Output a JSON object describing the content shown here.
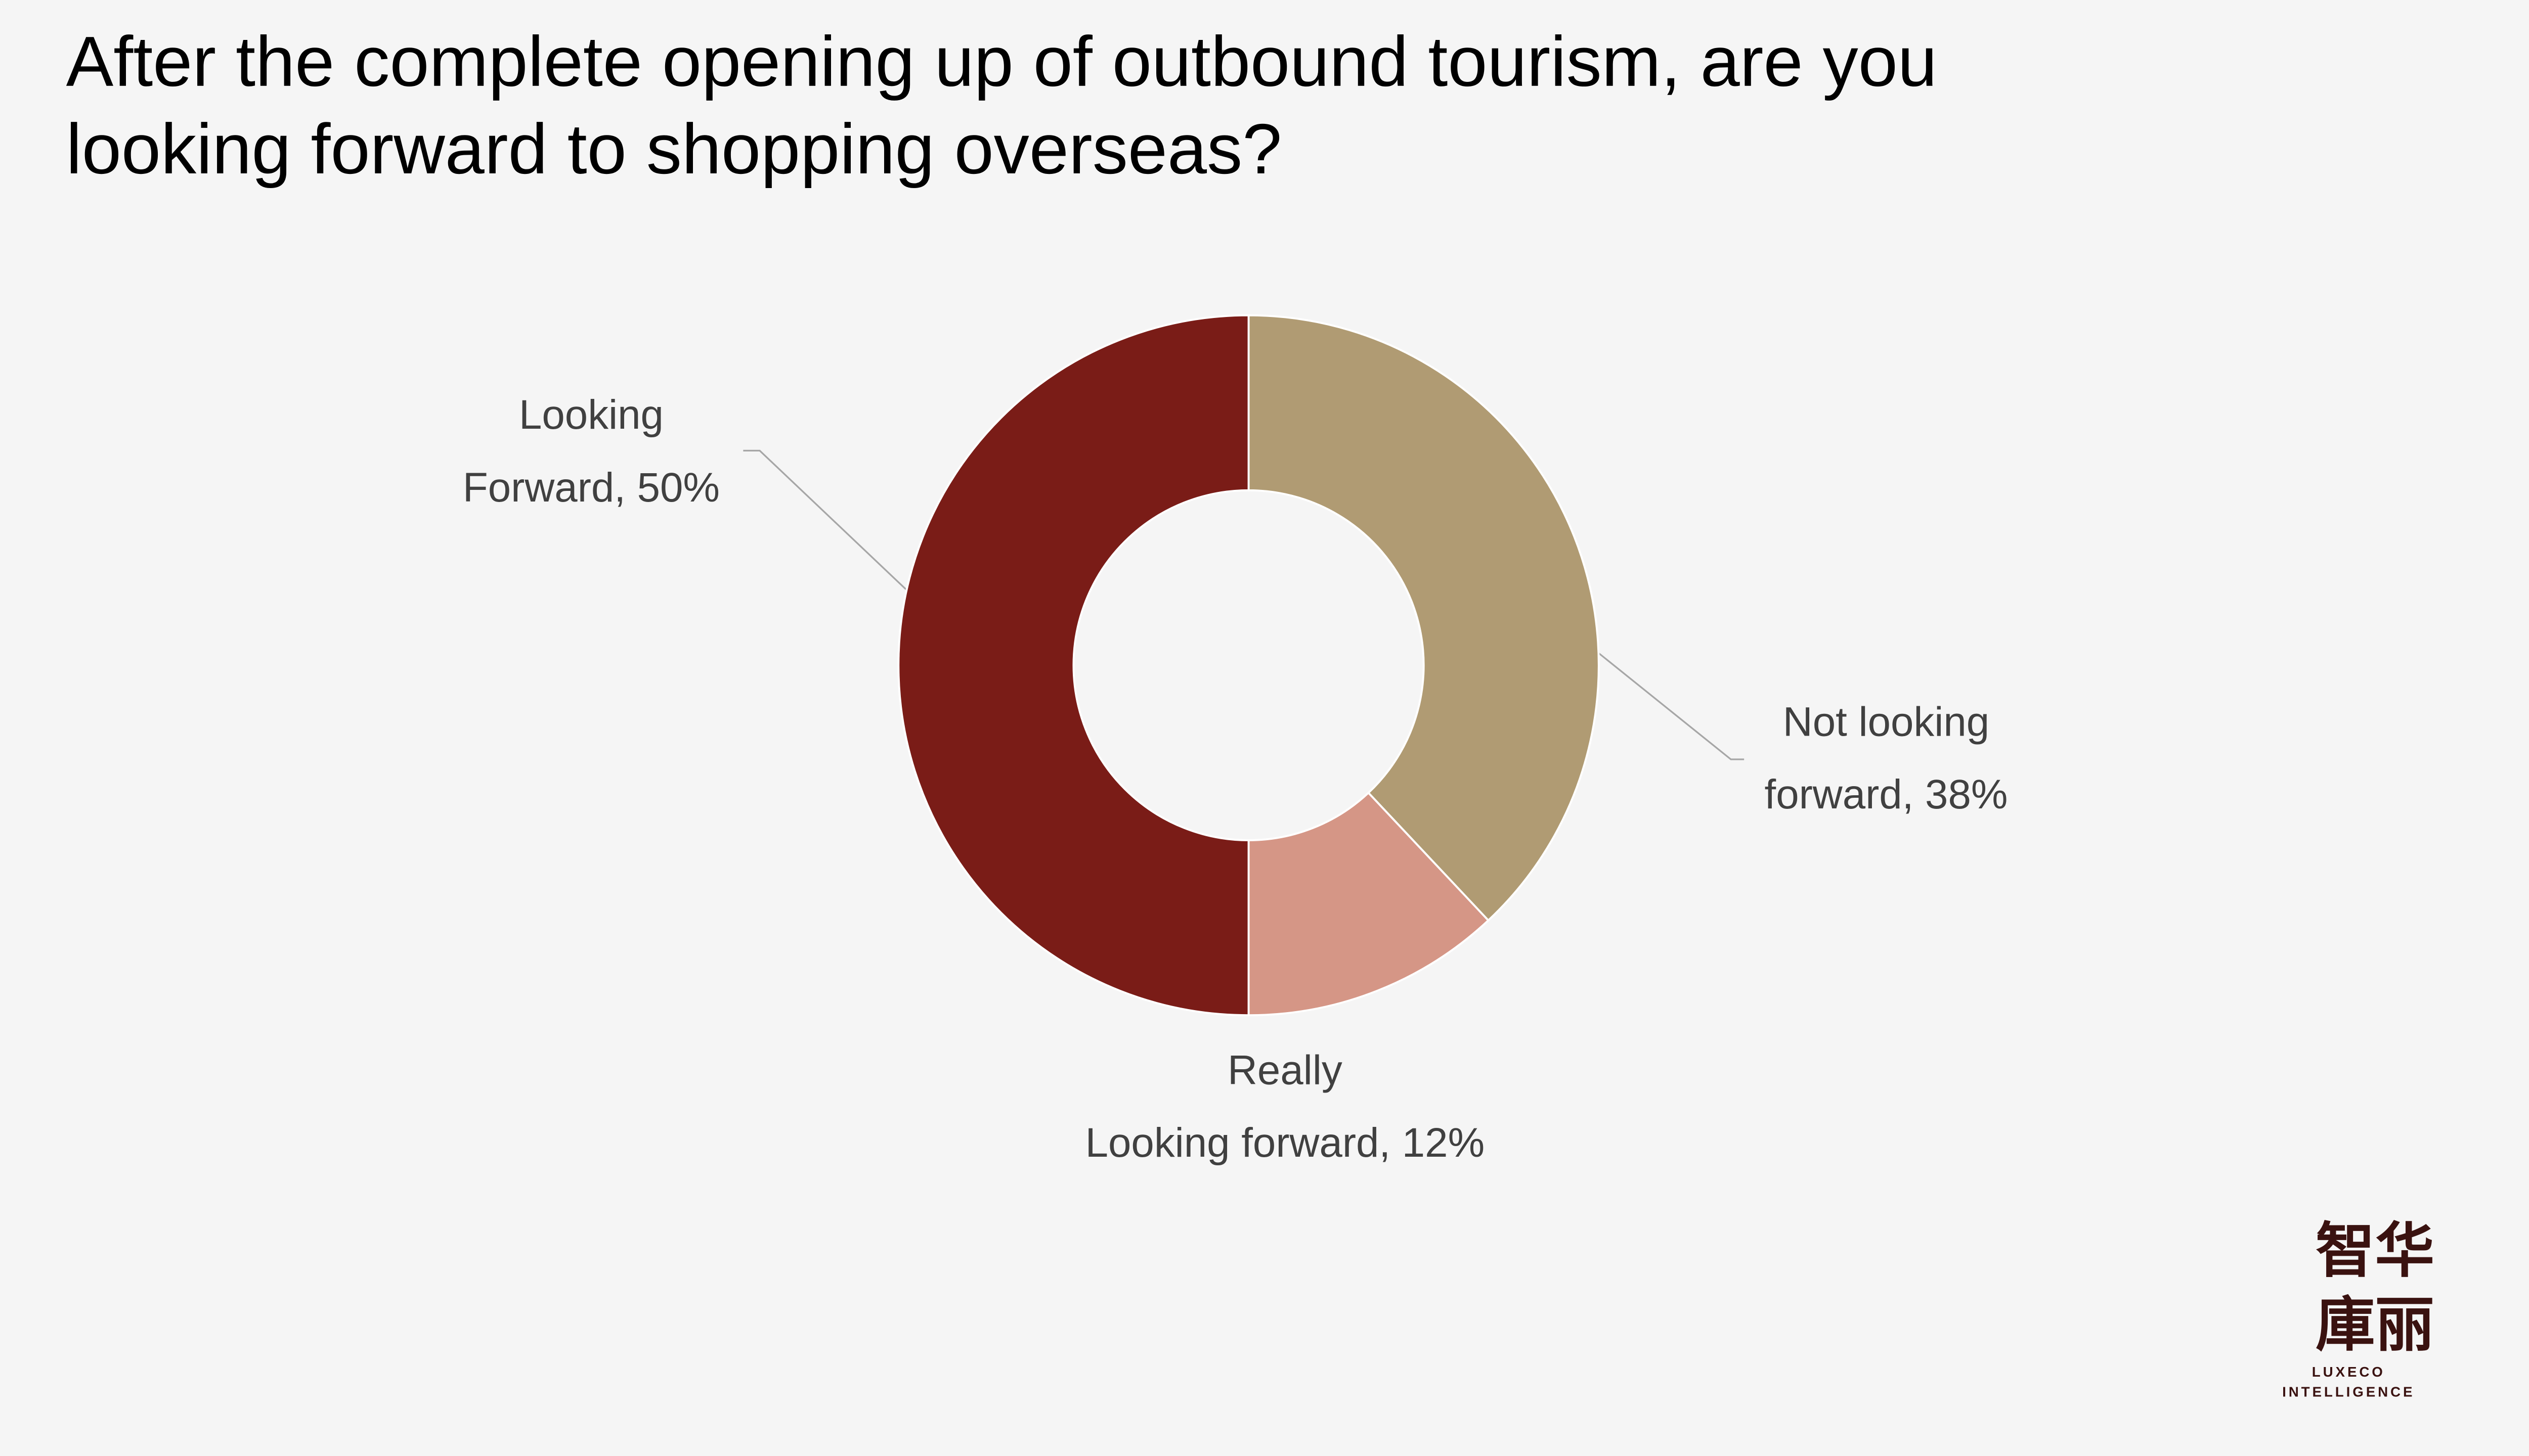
{
  "chart_data": {
    "type": "donut",
    "title": "After the complete opening up of outbound tourism, are you looking forward to shopping overseas?",
    "values": [
      38,
      12,
      50
    ],
    "value_labels": [
      "Not looking forward, 38%",
      "Really Looking forward, 12%",
      "Looking Forward, 50%"
    ],
    "colors": [
      "#b09b73",
      "#d59686",
      "#7a1c17"
    ]
  },
  "logo": {
    "chinese": [
      "智华",
      "庫丽"
    ],
    "english": [
      "LUXECO",
      "INTELLIGENCE"
    ]
  }
}
